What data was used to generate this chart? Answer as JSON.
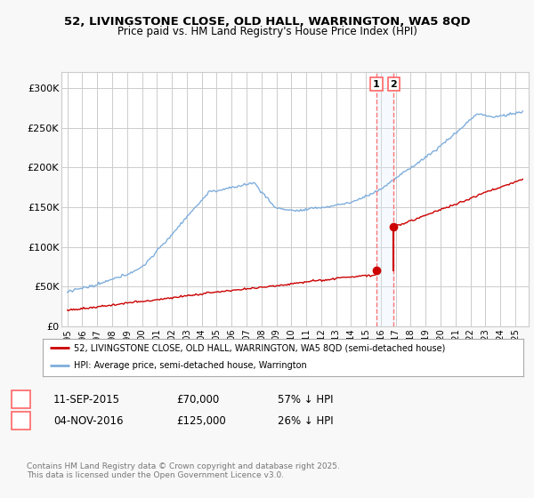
{
  "title_line1": "52, LIVINGSTONE CLOSE, OLD HALL, WARRINGTON, WA5 8QD",
  "title_line2": "Price paid vs. HM Land Registry's House Price Index (HPI)",
  "hpi_color": "#7FAEDC",
  "price_color": "#CC0000",
  "vline_color": "#FF6666",
  "shade_color": "#DDEEFF",
  "bg_color": "#F8F8F8",
  "plot_bg": "#FFFFFF",
  "grid_color": "#CCCCCC",
  "ylim": [
    0,
    320000
  ],
  "yticks": [
    0,
    50000,
    100000,
    150000,
    200000,
    250000,
    300000
  ],
  "ytick_labels": [
    "£0",
    "£50K",
    "£100K",
    "£150K",
    "£200K",
    "£250K",
    "£300K"
  ],
  "xlim_start": 1994.6,
  "xlim_end": 2025.9,
  "transaction1_date": 2015.7,
  "transaction1_price": 70000,
  "transaction2_date": 2016.85,
  "transaction2_price": 125000,
  "legend_label_red": "52, LIVINGSTONE CLOSE, OLD HALL, WARRINGTON, WA5 8QD (semi-detached house)",
  "legend_label_blue": "HPI: Average price, semi-detached house, Warrington",
  "anno1_date": "11-SEP-2015",
  "anno1_price": "£70,000",
  "anno1_pct": "57% ↓ HPI",
  "anno2_date": "04-NOV-2016",
  "anno2_price": "£125,000",
  "anno2_pct": "26% ↓ HPI",
  "footer": "Contains HM Land Registry data © Crown copyright and database right 2025.\nThis data is licensed under the Open Government Licence v3.0."
}
